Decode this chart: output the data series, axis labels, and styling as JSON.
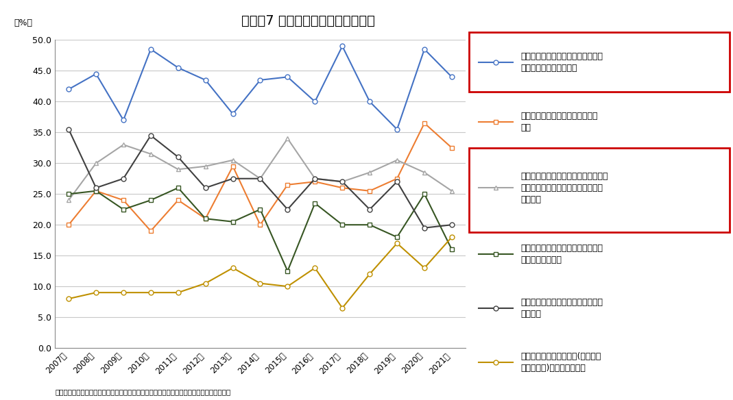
{
  "title": "図表－7 マンションが望ましい理由",
  "years": [
    "2007年",
    "2008年",
    "2009年",
    "2010年",
    "2011年",
    "2012年",
    "2013年",
    "2014年",
    "2015年",
    "2016年",
    "2017年",
    "2018年",
    "2019年",
    "2020年",
    "2021年"
  ],
  "series": [
    {
      "label": "マンションの方が、建物管理や補修\nに手間がかからないから",
      "color": "#4472C4",
      "marker": "o",
      "markerface": "white",
      "linewidth": 1.5,
      "values": [
        42.0,
        44.5,
        37.0,
        48.5,
        45.5,
        43.5,
        38.0,
        43.5,
        44.0,
        40.0,
        49.0,
        40.0,
        35.5,
        48.5,
        44.0
      ],
      "has_red_box": true
    },
    {
      "label": "一戸建てほどの広さは必要でない\nから",
      "color": "#ED7D31",
      "marker": "s",
      "markerface": "white",
      "linewidth": 1.5,
      "values": [
        20.0,
        25.5,
        24.0,
        19.0,
        24.0,
        21.0,
        29.5,
        20.0,
        26.5,
        27.0,
        26.0,
        25.5,
        27.5,
        36.5,
        32.5
      ],
      "has_red_box": false
    },
    {
      "label": "マンションの方が、店・施設・駅など\nが周りに多く、日常生活の利便性が\n高いから",
      "color": "#A5A5A5",
      "marker": "^",
      "markerface": "white",
      "linewidth": 1.5,
      "values": [
        24.0,
        30.0,
        33.0,
        31.5,
        29.0,
        29.5,
        30.5,
        27.5,
        34.0,
        27.5,
        27.0,
        28.5,
        30.5,
        28.5,
        25.5
      ],
      "has_red_box": true
    },
    {
      "label": "マンションの方が、安全性、耐震性\nに優れているから",
      "color": "#375623",
      "marker": "s",
      "markerface": "white",
      "linewidth": 1.5,
      "values": [
        25.0,
        25.5,
        22.5,
        24.0,
        26.0,
        21.0,
        20.5,
        22.5,
        12.5,
        23.5,
        20.0,
        20.0,
        18.0,
        25.0,
        16.0
      ],
      "has_red_box": false
    },
    {
      "label": "マンションの方が、防犯面で優れて\nいるから",
      "color": "#404040",
      "marker": "o",
      "markerface": "white",
      "linewidth": 1.5,
      "values": [
        35.5,
        26.0,
        27.5,
        34.5,
        31.0,
        26.0,
        27.5,
        27.5,
        22.5,
        27.5,
        27.0,
        22.5,
        27.0,
        19.5,
        20.0
      ],
      "has_red_box": false
    },
    {
      "label": "マンションの方が、処分(売却・購\n入・贈与等)がしやすいから",
      "color": "#BF9000",
      "marker": "o",
      "markerface": "white",
      "linewidth": 1.5,
      "values": [
        8.0,
        9.0,
        9.0,
        9.0,
        9.0,
        10.5,
        13.0,
        10.5,
        10.0,
        13.0,
        6.5,
        12.0,
        17.0,
        13.0,
        18.0
      ],
      "has_red_box": false
    }
  ],
  "ylim": [
    0.0,
    50.0
  ],
  "yticks": [
    0.0,
    5.0,
    10.0,
    15.0,
    20.0,
    25.0,
    30.0,
    35.0,
    40.0,
    45.0,
    50.0
  ],
  "ylabel": "（%）",
  "source": "（出所）国土交通省「土地問題に関する国民の意識調査」をもとにニッセイ基礎研究所作成",
  "background_color": "#FFFFFF",
  "grid_color": "#C8C8C8",
  "title_fontsize": 14,
  "red_box_color": "#CC0000"
}
